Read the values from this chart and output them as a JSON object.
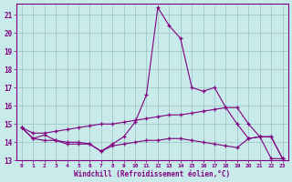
{
  "xlabel": "Windchill (Refroidissement éolien,°C)",
  "x": [
    0,
    1,
    2,
    3,
    4,
    5,
    6,
    7,
    8,
    9,
    10,
    11,
    12,
    13,
    14,
    15,
    16,
    17,
    18,
    19,
    20,
    21,
    22,
    23
  ],
  "line_spike": [
    14.8,
    14.2,
    14.4,
    14.1,
    13.9,
    13.9,
    13.9,
    13.5,
    13.9,
    14.3,
    15.1,
    16.6,
    21.4,
    20.4,
    19.7,
    17.0,
    16.8,
    17.0,
    15.9,
    15.0,
    14.2,
    14.3,
    14.3,
    13.1
  ],
  "line_flat_upper": [
    14.8,
    14.5,
    14.5,
    14.6,
    14.7,
    14.8,
    14.9,
    15.0,
    15.0,
    15.1,
    15.2,
    15.3,
    15.4,
    15.5,
    15.5,
    15.6,
    15.7,
    15.8,
    15.9,
    15.9,
    15.0,
    14.3,
    14.3,
    13.1
  ],
  "line_flat_lower": [
    14.8,
    14.2,
    14.1,
    14.1,
    14.0,
    14.0,
    13.9,
    13.5,
    13.8,
    13.9,
    14.0,
    14.1,
    14.1,
    14.2,
    14.2,
    14.1,
    14.0,
    13.9,
    13.8,
    13.7,
    14.2,
    14.3,
    13.1,
    13.1
  ],
  "ylim": [
    13,
    21.6
  ],
  "yticks": [
    13,
    14,
    15,
    16,
    17,
    18,
    19,
    20,
    21
  ],
  "color": "#800080",
  "bg_color": "#c8eaea",
  "grid_color": "#a0c8c8",
  "marker": "+"
}
